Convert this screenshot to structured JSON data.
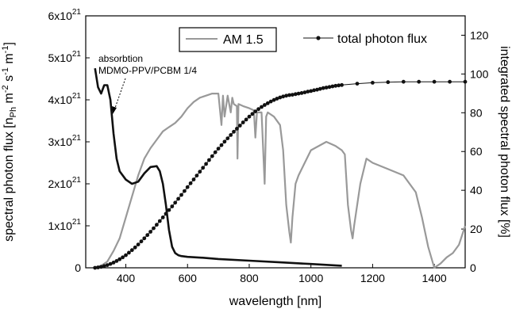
{
  "chart_data": {
    "type": "line",
    "xlabel": "wavelength [nm]",
    "ylabel_left": "spectral photon flux [n",
    "ylabel_left_sub": "Ph",
    "ylabel_left_rest": " m",
    "ylabel_left_sup1": "-2",
    "ylabel_left_mid": " s",
    "ylabel_left_sup2": "-1",
    "ylabel_left_end": " m",
    "ylabel_left_sup3": "-1",
    "ylabel_left_close": "]",
    "ylabel_right": "integrated spectral photon flux [%]",
    "xlim": [
      270,
      1500
    ],
    "ylim_left": [
      0,
      6e+21
    ],
    "ylim_right": [
      0,
      130
    ],
    "x_ticks": [
      400,
      600,
      800,
      1000,
      1200,
      1400
    ],
    "y_left_ticks": [
      {
        "base": "0",
        "exp": ""
      },
      {
        "base": "1x10",
        "exp": "21"
      },
      {
        "base": "2x10",
        "exp": "21"
      },
      {
        "base": "3x10",
        "exp": "21"
      },
      {
        "base": "4x10",
        "exp": "21"
      },
      {
        "base": "5x10",
        "exp": "21"
      },
      {
        "base": "6x10",
        "exp": "21"
      }
    ],
    "y_right_ticks": [
      0,
      20,
      40,
      60,
      80,
      100,
      120
    ],
    "legend": {
      "am15": "AM 1.5",
      "flux": "total photon flux"
    },
    "annotation": {
      "line1": "absorbtion",
      "line2": "MDMO-PPV/PCBM 1/4"
    },
    "series": [
      {
        "name": "AM 1.5",
        "axis": "left",
        "color": "#999999",
        "x": [
          300,
          320,
          340,
          360,
          380,
          400,
          420,
          440,
          460,
          480,
          500,
          520,
          540,
          560,
          580,
          600,
          620,
          640,
          660,
          680,
          700,
          710,
          715,
          720,
          730,
          740,
          745,
          750,
          760,
          762,
          765,
          780,
          800,
          815,
          820,
          825,
          840,
          850,
          855,
          860,
          880,
          900,
          910,
          920,
          930,
          935,
          940,
          950,
          960,
          1000,
          1050,
          1080,
          1100,
          1110,
          1120,
          1130,
          1135,
          1140,
          1160,
          1180,
          1200,
          1250,
          1300,
          1340,
          1360,
          1380,
          1400,
          1420,
          1440,
          1460,
          1480,
          1500
        ],
        "values": [
          0.0,
          5e+19,
          1.5e+20,
          4e+20,
          7e+20,
          1.2e+21,
          1.7e+21,
          2.2e+21,
          2.6e+21,
          2.85e+21,
          3.05e+21,
          3.25e+21,
          3.35e+21,
          3.45e+21,
          3.6e+21,
          3.8e+21,
          3.95e+21,
          4.05e+21,
          4.1e+21,
          4.15e+21,
          4.15e+21,
          3.4e+21,
          4.1e+21,
          3.6e+21,
          4.1e+21,
          3.7e+21,
          4.05e+21,
          3.9e+21,
          3.85e+21,
          2.6e+21,
          3.9e+21,
          3.85e+21,
          3.8e+21,
          3.75e+21,
          3.1e+21,
          3.7e+21,
          3.7e+21,
          2e+21,
          3.6e+21,
          3.7e+21,
          3.6e+21,
          3.4e+21,
          2.8e+21,
          1.5e+21,
          8.5e+20,
          6e+20,
          1.2e+21,
          2e+21,
          2.2e+21,
          2.8e+21,
          3e+21,
          2.9e+21,
          2.8e+21,
          2.7e+21,
          1.5e+21,
          9e+20,
          7e+20,
          1e+21,
          2e+21,
          2.6e+21,
          2.5e+21,
          2.35e+21,
          2.2e+21,
          1.8e+21,
          1.2e+21,
          5e+20,
          0.0,
          1e+20,
          2.5e+20,
          3.5e+20,
          5.5e+20,
          1e+21
        ]
      },
      {
        "name": "absorbtion MDMO-PPV/PCBM 1/4",
        "axis": "left",
        "color": "#111111",
        "x": [
          300,
          310,
          320,
          330,
          340,
          350,
          360,
          370,
          380,
          400,
          420,
          440,
          460,
          480,
          500,
          510,
          520,
          530,
          540,
          550,
          560,
          570,
          580,
          600,
          650,
          700,
          800,
          900,
          1000,
          1100
        ],
        "values": [
          4.75e+21,
          4.3e+21,
          4.15e+21,
          4.35e+21,
          4.35e+21,
          4e+21,
          3.2e+21,
          2.6e+21,
          2.3e+21,
          2.1e+21,
          2e+21,
          2.05e+21,
          2.25e+21,
          2.4e+21,
          2.42e+21,
          2.3e+21,
          2e+21,
          1.5e+21,
          9e+20,
          5e+20,
          3.5e+20,
          3e+20,
          2.8e+20,
          2.6e+20,
          2.4e+20,
          2.1e+20,
          1.7e+20,
          1.3e+20,
          9e+19,
          5e+19
        ]
      },
      {
        "name": "total photon flux",
        "axis": "right",
        "color": "#111111",
        "x": [
          300,
          310,
          320,
          330,
          340,
          350,
          360,
          370,
          380,
          390,
          400,
          410,
          420,
          430,
          440,
          450,
          460,
          470,
          480,
          490,
          500,
          510,
          520,
          530,
          540,
          550,
          560,
          570,
          580,
          590,
          600,
          610,
          620,
          630,
          640,
          650,
          660,
          670,
          680,
          690,
          700,
          710,
          720,
          730,
          740,
          750,
          760,
          770,
          780,
          790,
          800,
          810,
          820,
          830,
          840,
          850,
          860,
          870,
          880,
          890,
          900,
          910,
          920,
          930,
          940,
          950,
          960,
          970,
          980,
          990,
          1000,
          1010,
          1020,
          1030,
          1040,
          1050,
          1060,
          1070,
          1080,
          1090,
          1100,
          1150,
          1200,
          1250,
          1300,
          1350,
          1400,
          1450,
          1500
        ],
        "values": [
          0.0,
          0.2,
          0.5,
          0.9,
          1.4,
          2.0,
          2.7,
          3.5,
          4.4,
          5.4,
          6.5,
          7.8,
          9.1,
          10.5,
          12.0,
          13.6,
          15.2,
          16.9,
          18.6,
          20.4,
          22.2,
          24.1,
          26.0,
          27.9,
          29.8,
          31.7,
          33.6,
          35.6,
          37.6,
          39.6,
          41.6,
          43.6,
          45.6,
          47.6,
          49.6,
          51.6,
          53.6,
          55.6,
          57.6,
          59.6,
          61.5,
          63.3,
          65.1,
          66.8,
          68.5,
          70.2,
          71.8,
          73.4,
          75.0,
          76.5,
          78.0,
          79.4,
          80.7,
          81.9,
          83.0,
          84.0,
          84.9,
          85.8,
          86.6,
          87.3,
          87.9,
          88.4,
          88.8,
          89.1,
          89.3,
          89.6,
          89.9,
          90.2,
          90.5,
          90.9,
          91.2,
          91.6,
          91.9,
          92.3,
          92.7,
          93.0,
          93.3,
          93.6,
          93.9,
          94.1,
          94.3,
          95.0,
          95.5,
          95.8,
          96.0,
          96.0,
          96.0,
          96.0,
          96.0
        ]
      }
    ]
  }
}
